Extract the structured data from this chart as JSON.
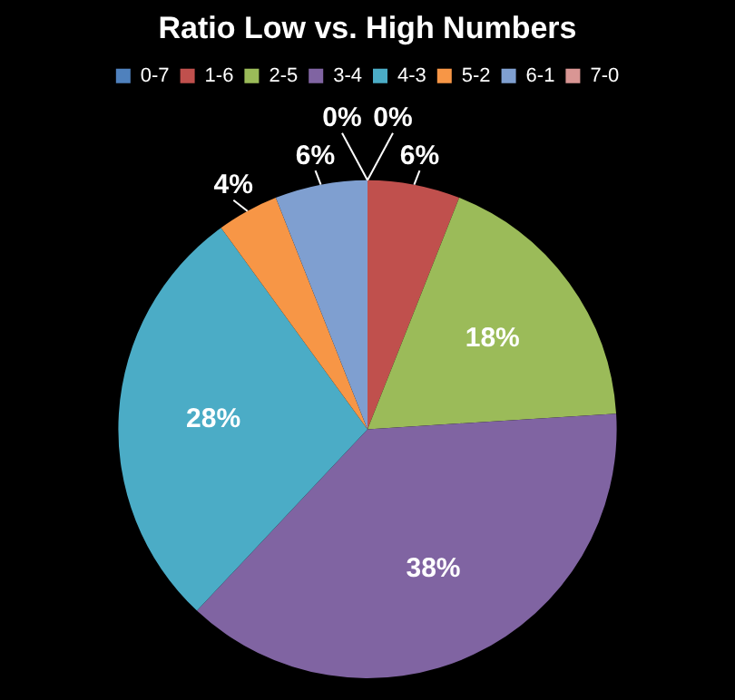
{
  "chart_data": {
    "type": "pie",
    "title": "Ratio Low vs. High Numbers",
    "categories": [
      "0-7",
      "1-6",
      "2-5",
      "3-4",
      "4-3",
      "5-2",
      "6-1",
      "7-0"
    ],
    "values": [
      0,
      6,
      18,
      38,
      28,
      4,
      6,
      0
    ],
    "value_labels": [
      "0%",
      "6%",
      "18%",
      "38%",
      "28%",
      "4%",
      "6%",
      "0%"
    ],
    "colors": [
      "#4f81bd",
      "#c0504d",
      "#9bbb59",
      "#8064a2",
      "#4bacc6",
      "#f79646",
      "#7f9fd0",
      "#d99694"
    ],
    "legend": "top"
  }
}
